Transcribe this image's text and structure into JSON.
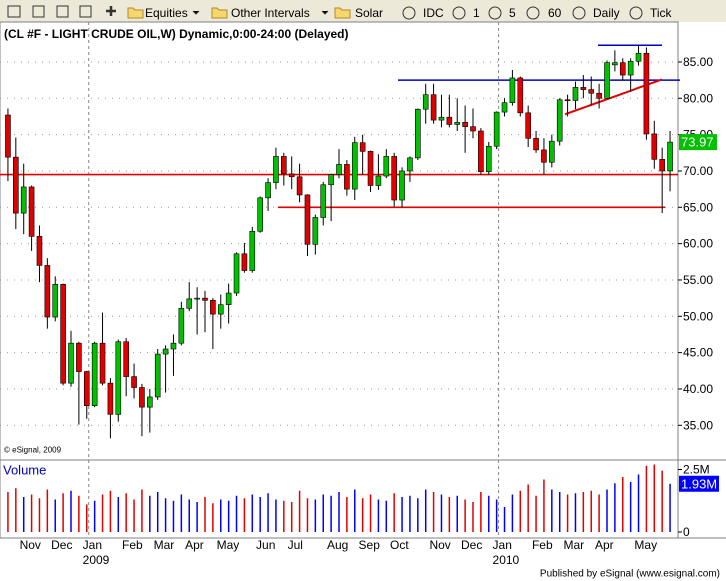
{
  "toolbar": {
    "items": [
      "Equities",
      "Other Intervals",
      "Solar",
      "IDC",
      "1",
      "5",
      "60",
      "Daily",
      "Tick"
    ]
  },
  "chart_data": {
    "type": "candlestick",
    "title": "(CL #F - LIGHT CRUDE OIL,W) Dynamic,0:00-24:00 (Delayed)",
    "copyright": "© eSignal, 2009",
    "categories": [
      null,
      null,
      null,
      "Nov",
      null,
      null,
      null,
      "Dec",
      null,
      null,
      null,
      "Jan",
      null,
      null,
      null,
      null,
      "Feb",
      null,
      null,
      null,
      "Mar",
      null,
      null,
      null,
      "Apr",
      null,
      null,
      null,
      "May",
      null,
      null,
      null,
      null,
      "Jun",
      null,
      null,
      null,
      "Jul",
      null,
      null,
      null,
      null,
      "Aug",
      null,
      null,
      null,
      "Sep",
      null,
      null,
      null,
      "Oct",
      null,
      null,
      null,
      null,
      "Nov",
      null,
      null,
      null,
      "Dec",
      null,
      null,
      null,
      "Jan",
      null,
      null,
      null,
      null,
      "Feb",
      null,
      null,
      null,
      "Mar",
      null,
      null,
      null,
      "Apr",
      null,
      null,
      null,
      null,
      "May",
      null,
      null,
      null
    ],
    "year_labels": [
      null,
      null,
      null,
      null,
      null,
      null,
      null,
      null,
      null,
      null,
      null,
      "2009",
      null,
      null,
      null,
      null,
      null,
      null,
      null,
      null,
      null,
      null,
      null,
      null,
      null,
      null,
      null,
      null,
      null,
      null,
      null,
      null,
      null,
      null,
      null,
      null,
      null,
      null,
      null,
      null,
      null,
      null,
      null,
      null,
      null,
      null,
      null,
      null,
      null,
      null,
      null,
      null,
      null,
      null,
      null,
      null,
      null,
      null,
      null,
      null,
      null,
      null,
      null,
      "2010",
      null,
      null,
      null,
      null,
      null,
      null,
      null,
      null,
      null,
      null,
      null,
      null,
      null,
      null,
      null,
      null,
      null,
      null,
      null,
      null,
      null
    ],
    "open": [
      77.7,
      71.9,
      64.2,
      67.8,
      61.0,
      57.0,
      49.9,
      54.4,
      40.8,
      46.3,
      42.4,
      37.7,
      46.3,
      40.8,
      36.5,
      46.5,
      41.7,
      40.2,
      37.5,
      38.9,
      44.8,
      45.5,
      46.3,
      51.1,
      52.4,
      52.5,
      52.2,
      50.3,
      51.6,
      53.2,
      58.6,
      56.3,
      61.7,
      66.3,
      68.4,
      72.0,
      69.6,
      69.2,
      66.7,
      59.9,
      63.6,
      68.1,
      69.5,
      70.9,
      67.5,
      73.9,
      72.7,
      68.0,
      69.3,
      72.0,
      66.0,
      70.0,
      71.8,
      78.5,
      80.5,
      77.0,
      77.4,
      76.4,
      76.7,
      76.1,
      75.5,
      69.9,
      73.4,
      78.1,
      79.4,
      82.8,
      78.0,
      74.5,
      72.9,
      71.2,
      74.1,
      79.8,
      79.7,
      81.5,
      81.2,
      80.7,
      80.0,
      84.6,
      84.9,
      83.2,
      85.1,
      86.2,
      75.1,
      71.6,
      70.0
    ],
    "high": [
      78.6,
      74.6,
      71.0,
      68.0,
      62.5,
      58.0,
      55.5,
      54.5,
      48.0,
      46.5,
      42.5,
      46.5,
      50.5,
      41.5,
      46.8,
      47.0,
      43.5,
      40.7,
      40.0,
      45.5,
      46.0,
      47.5,
      52.0,
      54.7,
      54.0,
      53.5,
      52.5,
      53.0,
      54.5,
      58.8,
      60.1,
      62.3,
      66.5,
      69.0,
      73.2,
      72.5,
      72.0,
      71.0,
      66.8,
      64.0,
      68.5,
      69.5,
      73.0,
      71.5,
      74.7,
      75.0,
      72.8,
      72.3,
      73.0,
      72.5,
      70.5,
      72.0,
      78.6,
      82.0,
      82.0,
      80.5,
      80.5,
      80.0,
      79.0,
      78.6,
      75.9,
      74.0,
      78.2,
      80.0,
      83.9,
      83.0,
      79.0,
      75.5,
      74.5,
      75.0,
      80.0,
      80.5,
      82.3,
      83.2,
      83.0,
      82.0,
      85.2,
      86.6,
      85.5,
      85.5,
      87.2,
      87.0,
      76.9,
      73.2,
      75.5
    ],
    "low": [
      68.6,
      62.0,
      61.3,
      59.0,
      54.7,
      48.3,
      49.3,
      40.5,
      40.3,
      35.1,
      35.9,
      37.5,
      40.5,
      33.2,
      35.5,
      39.0,
      38.7,
      33.5,
      34.0,
      38.5,
      39.5,
      41.8,
      46.0,
      50.7,
      47.5,
      47.8,
      45.5,
      48.3,
      49.0,
      52.8,
      56.0,
      56.0,
      61.5,
      64.5,
      67.5,
      68.0,
      67.5,
      65.7,
      58.3,
      58.5,
      62.5,
      63.1,
      69.0,
      66.6,
      66.0,
      69.5,
      67.1,
      67.4,
      69.0,
      65.1,
      65.0,
      68.5,
      71.5,
      76.5,
      76.5,
      76.0,
      76.0,
      75.5,
      72.5,
      74.5,
      69.5,
      69.5,
      73.0,
      77.5,
      79.0,
      77.5,
      73.3,
      72.5,
      69.5,
      70.5,
      73.5,
      77.5,
      78.5,
      80.0,
      79.0,
      78.6,
      80.0,
      83.7,
      82.5,
      80.9,
      84.5,
      74.3,
      70.3,
      64.2,
      67.2
    ],
    "close": [
      71.9,
      64.2,
      67.8,
      61.0,
      57.0,
      49.9,
      54.4,
      40.8,
      46.3,
      42.4,
      37.7,
      46.3,
      40.8,
      36.5,
      46.5,
      41.7,
      40.2,
      37.5,
      38.9,
      44.8,
      45.5,
      46.3,
      51.1,
      52.4,
      52.5,
      52.2,
      50.3,
      51.6,
      53.2,
      58.6,
      56.3,
      61.7,
      66.3,
      68.4,
      72.0,
      69.6,
      69.2,
      66.7,
      59.9,
      63.6,
      68.1,
      69.5,
      70.9,
      67.5,
      73.9,
      72.7,
      68.0,
      69.3,
      72.0,
      66.0,
      70.0,
      71.8,
      78.5,
      80.5,
      77.0,
      77.4,
      76.4,
      76.7,
      76.1,
      75.5,
      69.9,
      73.4,
      78.1,
      79.4,
      82.8,
      78.0,
      74.5,
      72.9,
      71.2,
      74.1,
      79.8,
      79.7,
      81.5,
      81.2,
      80.7,
      80.0,
      84.9,
      84.9,
      83.2,
      85.1,
      86.2,
      75.1,
      71.6,
      70.0,
      73.97
    ],
    "up_color": "#00c000",
    "down_color": "#e00000",
    "ylim": [
      30.5,
      90.5
    ],
    "yticks": [
      {
        "value": 35,
        "label": "35.00"
      },
      {
        "value": 40,
        "label": "40.00"
      },
      {
        "value": 45,
        "label": "45.00"
      },
      {
        "value": 50,
        "label": "50.00"
      },
      {
        "value": 55,
        "label": "55.00"
      },
      {
        "value": 60,
        "label": "60.00"
      },
      {
        "value": 65,
        "label": "65.00"
      },
      {
        "value": 70,
        "label": "70.00"
      },
      {
        "value": 75,
        "label": "75.00"
      },
      {
        "value": 80,
        "label": "80.00"
      },
      {
        "value": 85,
        "label": "85.00"
      }
    ],
    "grid": true,
    "lines": [
      {
        "color": "#e00000",
        "value": 69.5
      },
      {
        "color": "#e00000",
        "value": 65.0
      },
      {
        "color": "#0000c0",
        "value": 82.5
      },
      {
        "color": "#0000c0",
        "value": 87.3
      }
    ],
    "trendline": {
      "color": "#e00000",
      "values": [
        77.8,
        82.6
      ]
    },
    "volume": {
      "title": "Volume",
      "values": [
        1600000,
        1750000,
        1400000,
        1500000,
        1350000,
        1700000,
        1300000,
        1550000,
        1650000,
        1450000,
        1100000,
        1250000,
        1500000,
        1650000,
        1400000,
        1550000,
        1300000,
        1700000,
        1450000,
        1600000,
        1350000,
        1250000,
        1500000,
        1300000,
        1200000,
        1400000,
        1150000,
        1300000,
        1250000,
        1450000,
        1350000,
        1500000,
        1400000,
        1550000,
        1300000,
        1250000,
        1200000,
        1650000,
        1350000,
        1300000,
        1500000,
        1450000,
        1600000,
        1400000,
        1700000,
        1350000,
        1500000,
        1300000,
        1250000,
        1550000,
        1400000,
        1450000,
        1350000,
        1700000,
        1600000,
        1500000,
        1400000,
        1450000,
        1300000,
        1200000,
        1600000,
        1450000,
        1300000,
        1000000,
        1500000,
        1650000,
        1900000,
        1450000,
        2100000,
        1700000,
        1600000,
        1500000,
        1550000,
        1600000,
        1650000,
        1500000,
        1700000,
        1950000,
        2200000,
        2000000,
        2300000,
        2650000,
        2700000,
        2450000,
        1930000
      ],
      "up_color": "#0000ff",
      "down_color": "#e00000",
      "ylim": [
        0,
        2800000
      ],
      "yticks": [
        0,
        {
          "value": 2500000,
          "label": "2.5M"
        }
      ],
      "last_label": "1.93M"
    }
  },
  "footer": "Published by eSignal (www.esignal.com)"
}
